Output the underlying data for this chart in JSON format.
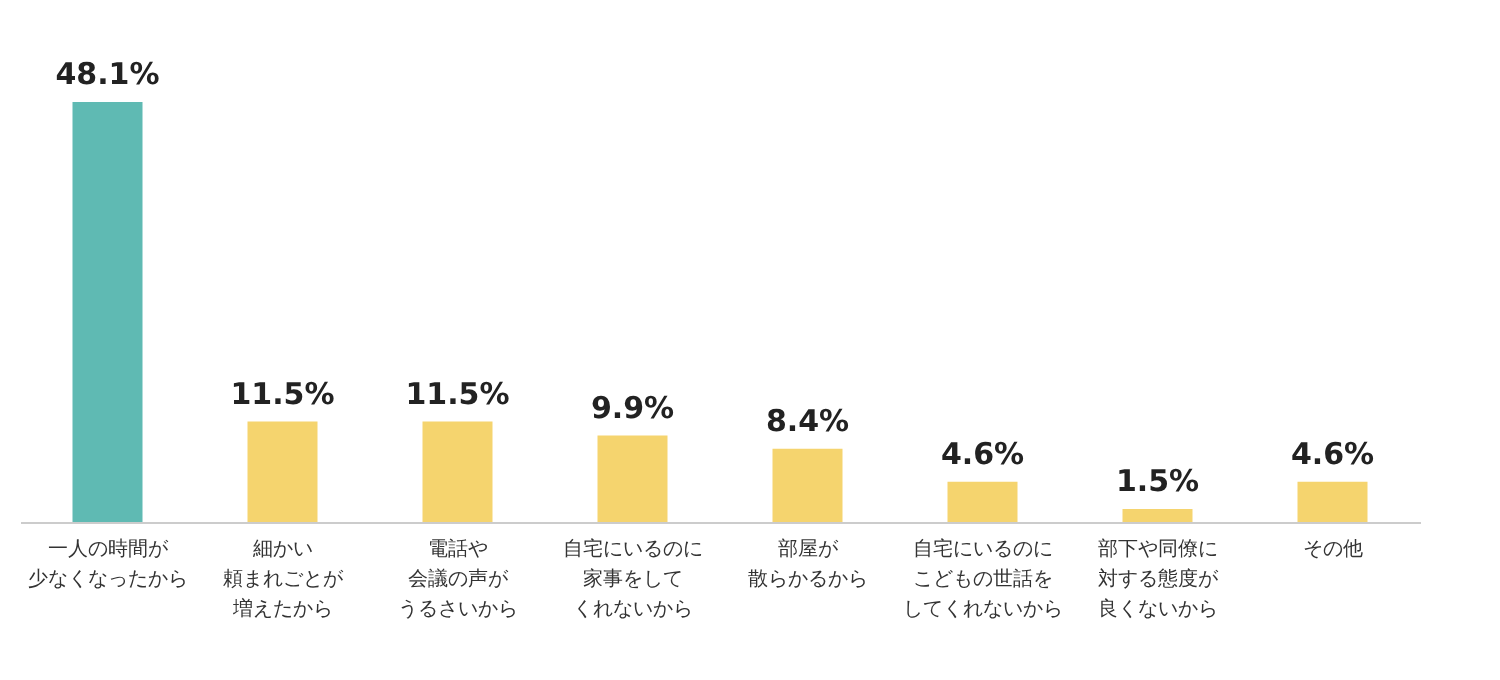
{
  "chart_data": {
    "type": "bar",
    "categories": [
      "一人の時間が少なくなったから",
      "細かい頼まれごとが増えたから",
      "電話や会議の声がうるさいから",
      "自宅にいるのに家事をしてくれないから",
      "部屋が散らかるから",
      "自宅にいるのにこどもの世話をしてくれないから",
      "部下や同僚に対する態度が良くないから",
      "その他"
    ],
    "values": [
      48.1,
      11.5,
      11.5,
      9.9,
      8.4,
      4.6,
      1.5,
      4.6
    ],
    "colors": [
      "#5fbab3",
      "#f5d46e",
      "#f5d46e",
      "#f5d46e",
      "#f5d46e",
      "#f5d46e",
      "#f5d46e",
      "#f5d46e"
    ],
    "value_labels": [
      "48.1%",
      "11.5%",
      "11.5%",
      "9.9%",
      "8.4%",
      "4.6%",
      "1.5%",
      "4.6%"
    ],
    "tick_labels": "x",
    "grid": false
  }
}
